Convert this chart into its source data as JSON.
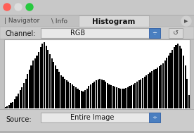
{
  "title": "Histogram",
  "channel_label": "Channel:",
  "channel_value": "RGB",
  "source_label": "Source:",
  "source_value": "Entire Image",
  "outer_bg": "#b0b0b0",
  "panel_bg": "#c8c8c8",
  "titlebar_bg": "#c0c0c0",
  "hist_bg": "#ffffff",
  "bar_color": "#000000",
  "histogram_values": [
    2,
    3,
    5,
    8,
    10,
    14,
    18,
    22,
    28,
    32,
    38,
    45,
    52,
    58,
    65,
    72,
    75,
    80,
    85,
    92,
    98,
    100,
    95,
    88,
    82,
    75,
    70,
    65,
    60,
    55,
    50,
    48,
    45,
    42,
    40,
    38,
    36,
    34,
    32,
    30,
    28,
    27,
    26,
    28,
    30,
    34,
    36,
    38,
    40,
    42,
    44,
    45,
    44,
    42,
    40,
    38,
    36,
    35,
    34,
    33,
    32,
    31,
    30,
    30,
    30,
    31,
    32,
    34,
    35,
    36,
    38,
    40,
    42,
    44,
    46,
    48,
    50,
    52,
    54,
    56,
    58,
    60,
    62,
    64,
    66,
    68,
    72,
    76,
    80,
    84,
    88,
    92,
    96,
    98,
    95,
    90,
    80,
    65,
    45,
    20
  ],
  "figsize": [
    2.76,
    1.89
  ],
  "dpi": 100
}
